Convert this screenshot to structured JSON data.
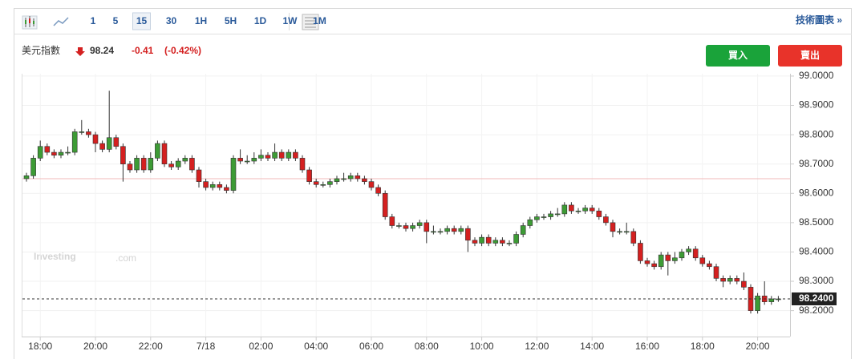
{
  "toolbar": {
    "intervals": [
      "1",
      "5",
      "15",
      "30",
      "1H",
      "5H",
      "1D",
      "1W",
      "1M"
    ],
    "selected_interval": "15",
    "link": "技術圖表 »"
  },
  "quote": {
    "name": "美元指數",
    "price": "98.24",
    "change": "-0.41",
    "change_pct": "(-0.42%)"
  },
  "buttons": {
    "buy": "買入",
    "sell": "賣出"
  },
  "watermark": {
    "brand": "Investing",
    "suffix": ".com"
  },
  "chart_data": {
    "type": "candlestick",
    "categories": [
      null,
      null,
      "18:00",
      null,
      null,
      null,
      null,
      null,
      null,
      null,
      "20:00",
      null,
      null,
      null,
      null,
      null,
      null,
      null,
      "22:00",
      null,
      null,
      null,
      null,
      null,
      null,
      null,
      "7/18",
      null,
      null,
      null,
      null,
      null,
      null,
      null,
      "02:00",
      null,
      null,
      null,
      null,
      null,
      null,
      null,
      "04:00",
      null,
      null,
      null,
      null,
      null,
      null,
      null,
      "06:00",
      null,
      null,
      null,
      null,
      null,
      null,
      null,
      "08:00",
      null,
      null,
      null,
      null,
      null,
      null,
      null,
      "10:00",
      null,
      null,
      null,
      null,
      null,
      null,
      null,
      "12:00",
      null,
      null,
      null,
      null,
      null,
      null,
      null,
      "14:00",
      null,
      null,
      null,
      null,
      null,
      null,
      null,
      "16:00",
      null,
      null,
      null,
      null,
      null,
      null,
      null,
      "18:00",
      null,
      null,
      null,
      null,
      null,
      null,
      null,
      "20:00",
      null,
      null,
      null
    ],
    "open": [
      98.65,
      98.66,
      98.72,
      98.76,
      98.74,
      98.73,
      98.74,
      98.74,
      98.81,
      98.81,
      98.8,
      98.77,
      98.75,
      98.79,
      98.76,
      98.7,
      98.68,
      98.72,
      98.68,
      98.72,
      98.77,
      98.7,
      98.69,
      98.71,
      98.72,
      98.68,
      98.64,
      98.62,
      98.63,
      98.62,
      98.61,
      98.72,
      98.71,
      98.71,
      98.72,
      98.73,
      98.72,
      98.74,
      98.72,
      98.74,
      98.72,
      98.68,
      98.64,
      98.63,
      98.63,
      98.64,
      98.65,
      98.65,
      98.66,
      98.65,
      98.64,
      98.62,
      98.6,
      98.52,
      98.49,
      98.49,
      98.48,
      98.49,
      98.5,
      98.47,
      98.47,
      98.47,
      98.48,
      98.47,
      98.48,
      98.44,
      98.43,
      98.45,
      98.43,
      98.44,
      98.43,
      98.43,
      98.46,
      98.49,
      98.51,
      98.52,
      98.52,
      98.53,
      98.53,
      98.56,
      98.54,
      98.54,
      98.55,
      98.54,
      98.52,
      98.5,
      98.47,
      98.47,
      98.47,
      98.43,
      98.37,
      98.36,
      98.35,
      98.39,
      98.37,
      98.38,
      98.4,
      98.41,
      98.38,
      98.36,
      98.35,
      98.31,
      98.3,
      98.31,
      98.3,
      98.28,
      98.2,
      98.25,
      98.23,
      98.24
    ],
    "high": [
      98.67,
      98.73,
      98.78,
      98.77,
      98.75,
      98.75,
      98.76,
      98.82,
      98.85,
      98.82,
      98.81,
      98.78,
      98.95,
      98.8,
      98.77,
      98.71,
      98.73,
      98.73,
      98.74,
      98.78,
      98.78,
      98.71,
      98.72,
      98.73,
      98.73,
      98.69,
      98.65,
      98.64,
      98.64,
      98.63,
      98.73,
      98.75,
      98.73,
      98.74,
      98.75,
      98.74,
      98.77,
      98.75,
      98.75,
      98.75,
      98.73,
      98.69,
      98.65,
      98.64,
      98.65,
      98.66,
      98.67,
      98.67,
      98.67,
      98.66,
      98.65,
      98.63,
      98.61,
      98.53,
      98.5,
      98.5,
      98.5,
      98.51,
      98.51,
      98.49,
      98.48,
      98.49,
      98.49,
      98.49,
      98.49,
      98.45,
      98.46,
      98.46,
      98.45,
      98.45,
      98.44,
      98.47,
      98.5,
      98.52,
      98.53,
      98.53,
      98.54,
      98.55,
      98.57,
      98.57,
      98.55,
      98.56,
      98.56,
      98.55,
      98.53,
      98.51,
      98.48,
      98.5,
      98.48,
      98.44,
      98.38,
      98.37,
      98.4,
      98.4,
      98.4,
      98.41,
      98.42,
      98.42,
      98.39,
      98.37,
      98.36,
      98.32,
      98.32,
      98.32,
      98.33,
      98.29,
      98.26,
      98.3,
      98.25,
      98.25
    ],
    "low": [
      98.64,
      98.65,
      98.71,
      98.73,
      98.72,
      98.72,
      98.73,
      98.73,
      98.8,
      98.79,
      98.74,
      98.74,
      98.74,
      98.75,
      98.64,
      98.67,
      98.67,
      98.67,
      98.67,
      98.71,
      98.69,
      98.68,
      98.68,
      98.7,
      98.67,
      98.62,
      98.61,
      98.61,
      98.61,
      98.6,
      98.6,
      98.7,
      98.7,
      98.7,
      98.71,
      98.71,
      98.71,
      98.71,
      98.71,
      98.71,
      98.67,
      98.63,
      98.62,
      98.62,
      98.62,
      98.63,
      98.64,
      98.64,
      98.64,
      98.63,
      98.61,
      98.59,
      98.51,
      98.48,
      98.48,
      98.47,
      98.47,
      98.48,
      98.43,
      98.46,
      98.46,
      98.46,
      98.46,
      98.46,
      98.4,
      98.42,
      98.42,
      98.42,
      98.42,
      98.42,
      98.42,
      98.42,
      98.45,
      98.48,
      98.5,
      98.51,
      98.51,
      98.52,
      98.52,
      98.53,
      98.53,
      98.53,
      98.53,
      98.51,
      98.49,
      98.45,
      98.46,
      98.46,
      98.42,
      98.36,
      98.35,
      98.34,
      98.34,
      98.32,
      98.36,
      98.37,
      98.39,
      98.37,
      98.35,
      98.34,
      98.3,
      98.28,
      98.29,
      98.29,
      98.27,
      98.19,
      98.19,
      98.22,
      98.22,
      98.23
    ],
    "close": [
      98.66,
      98.72,
      98.76,
      98.74,
      98.73,
      98.74,
      98.74,
      98.81,
      98.81,
      98.8,
      98.77,
      98.75,
      98.79,
      98.76,
      98.7,
      98.68,
      98.72,
      98.68,
      98.72,
      98.77,
      98.7,
      98.69,
      98.71,
      98.72,
      98.68,
      98.64,
      98.62,
      98.63,
      98.62,
      98.61,
      98.72,
      98.71,
      98.71,
      98.72,
      98.73,
      98.72,
      98.74,
      98.72,
      98.74,
      98.72,
      98.68,
      98.64,
      98.63,
      98.63,
      98.64,
      98.65,
      98.65,
      98.66,
      98.65,
      98.64,
      98.62,
      98.6,
      98.52,
      98.49,
      98.49,
      98.48,
      98.49,
      98.5,
      98.47,
      98.47,
      98.47,
      98.48,
      98.47,
      98.48,
      98.44,
      98.43,
      98.45,
      98.43,
      98.44,
      98.43,
      98.43,
      98.46,
      98.49,
      98.51,
      98.52,
      98.52,
      98.53,
      98.53,
      98.56,
      98.54,
      98.54,
      98.55,
      98.54,
      98.52,
      98.5,
      98.47,
      98.47,
      98.47,
      98.43,
      98.37,
      98.36,
      98.35,
      98.39,
      98.37,
      98.38,
      98.4,
      98.41,
      98.38,
      98.36,
      98.35,
      98.31,
      98.3,
      98.31,
      98.3,
      98.28,
      98.2,
      98.25,
      98.23,
      98.24,
      98.24
    ],
    "up_color": "#3d9b35",
    "down_color": "#d42020",
    "ylim": [
      98.117,
      99.008
    ],
    "yticks": [
      {
        "value": 98.2,
        "label": "98.2000"
      },
      {
        "value": 98.3,
        "label": "98.3000"
      },
      {
        "value": 98.4,
        "label": "98.4000"
      },
      {
        "value": 98.5,
        "label": "98.5000"
      },
      {
        "value": 98.6,
        "label": "98.6000"
      },
      {
        "value": 98.7,
        "label": "98.7000"
      },
      {
        "value": 98.8,
        "label": "98.8000"
      },
      {
        "value": 98.9,
        "label": "98.9000"
      },
      {
        "value": 99.0,
        "label": "99.0000"
      }
    ],
    "reference_line": 98.65,
    "last_price": {
      "value": 98.24,
      "label": "98.2400"
    },
    "grid": true
  }
}
